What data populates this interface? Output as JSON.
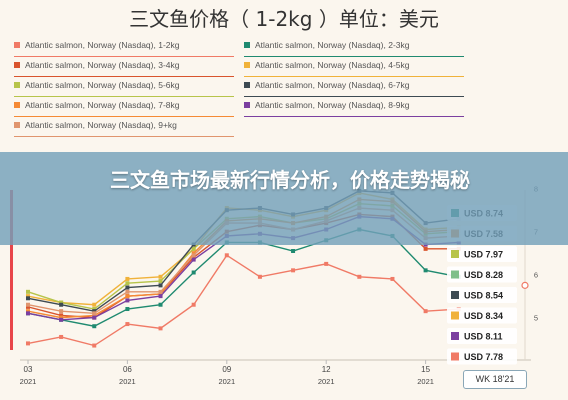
{
  "title": "三文鱼价格（ 1-2kg   ）单位：美元",
  "banner_title": "三文鱼市场最新行情分析，价格走势揭秘",
  "week_label": "WK 18'21",
  "chart_data": {
    "type": "line",
    "x_ticks": [
      {
        "week": 3,
        "label": "03",
        "year": "2021"
      },
      {
        "week": 6,
        "label": "06",
        "year": "2021"
      },
      {
        "week": 9,
        "label": "09",
        "year": "2021"
      },
      {
        "week": 12,
        "label": "12",
        "year": "2021"
      },
      {
        "week": 15,
        "label": "15",
        "year": "2021"
      }
    ],
    "xlim": [
      3,
      18
    ],
    "ylim": [
      4.2,
      8.9
    ],
    "y_ticks": [
      5,
      6,
      7,
      8
    ],
    "weeks": [
      3,
      4,
      5,
      6,
      7,
      8,
      9,
      10,
      11,
      12,
      13,
      14,
      15,
      16
    ],
    "series": [
      {
        "name": "Atlantic salmon, Norway (Nasdaq), 1-2kg",
        "color": "#f07a66",
        "values": [
          4.4,
          4.55,
          4.35,
          4.85,
          4.75,
          5.3,
          6.45,
          5.95,
          6.1,
          6.25,
          5.95,
          5.9,
          5.15,
          5.2
        ],
        "label": "USD 7.78"
      },
      {
        "name": "Atlantic salmon, Norway (Nasdaq), 2-3kg",
        "color": "#1f8a70",
        "values": [
          5.1,
          4.95,
          4.8,
          5.2,
          5.3,
          6.05,
          6.75,
          6.75,
          6.55,
          6.8,
          7.05,
          6.9,
          6.1,
          5.95
        ],
        "label": ""
      },
      {
        "name": "Atlantic salmon, Norway (Nasdaq), 3-4kg",
        "color": "#d9542d",
        "values": [
          5.25,
          5.05,
          5.0,
          5.5,
          5.55,
          6.4,
          7.0,
          7.15,
          7.05,
          7.2,
          7.4,
          7.35,
          6.6,
          6.6
        ],
        "label": ""
      },
      {
        "name": "Atlantic salmon, Norway (Nasdaq), 4-5kg",
        "color": "#f0b23a",
        "values": [
          5.5,
          5.35,
          5.3,
          5.9,
          5.95,
          6.6,
          7.55,
          7.5,
          7.35,
          7.5,
          7.9,
          7.75,
          7.05,
          7.1
        ],
        "label": "USD 8.34"
      },
      {
        "name": "Atlantic salmon, Norway (Nasdaq), 5-6kg",
        "color": "#b7c44a",
        "values": [
          5.6,
          5.35,
          5.2,
          5.8,
          5.85,
          6.6,
          7.3,
          7.35,
          7.2,
          7.3,
          7.65,
          7.6,
          6.95,
          7.0
        ],
        "label": "USD 7.97"
      },
      {
        "name": "Atlantic salmon, Norway (Nasdaq), 6-7kg",
        "color": "#3d4a52",
        "values": [
          5.45,
          5.3,
          5.15,
          5.7,
          5.75,
          6.7,
          7.5,
          7.55,
          7.4,
          7.55,
          7.95,
          7.9,
          7.2,
          7.3
        ],
        "label": "USD 8.54"
      },
      {
        "name": "Atlantic salmon, Norway (Nasdaq), 7-8kg",
        "color": "#f58a35",
        "values": [
          5.15,
          5.0,
          5.05,
          5.5,
          5.55,
          6.5,
          7.25,
          7.3,
          7.2,
          7.35,
          7.75,
          7.7,
          7.0,
          7.05
        ],
        "label": "USD 7.58"
      },
      {
        "name": "Atlantic salmon, Norway (Nasdaq), 8-9kg",
        "color": "#7b3fa0",
        "values": [
          5.1,
          4.95,
          5.0,
          5.4,
          5.5,
          6.35,
          6.9,
          6.95,
          6.85,
          7.05,
          7.35,
          7.3,
          6.7,
          6.75
        ],
        "label": "USD 8.11"
      },
      {
        "name": "Atlantic salmon, Norway (Nasdaq), 9+kg",
        "color": "#e0956e",
        "values": [
          5.3,
          5.15,
          5.1,
          5.6,
          5.6,
          6.45,
          7.2,
          7.2,
          7.05,
          7.25,
          7.55,
          7.5,
          6.85,
          6.9
        ],
        "label": ""
      }
    ],
    "label_stack": [
      {
        "text": "USD 8.74",
        "color": "#1f8a70"
      },
      {
        "text": "USD 7.58",
        "color": "#f58a35"
      },
      {
        "text": "USD 7.97",
        "color": "#b7c44a"
      },
      {
        "text": "USD 8.28",
        "color": "#7fbf8a"
      },
      {
        "text": "USD 8.54",
        "color": "#3d4a52"
      },
      {
        "text": "USD 8.34",
        "color": "#f0b23a"
      },
      {
        "text": "USD 8.11",
        "color": "#7b3fa0"
      },
      {
        "text": "USD 7.78",
        "color": "#f07a66"
      }
    ],
    "legend_order": [
      0,
      1,
      2,
      3,
      4,
      5,
      6,
      7,
      8
    ],
    "highlight_color": "#e8454a"
  }
}
